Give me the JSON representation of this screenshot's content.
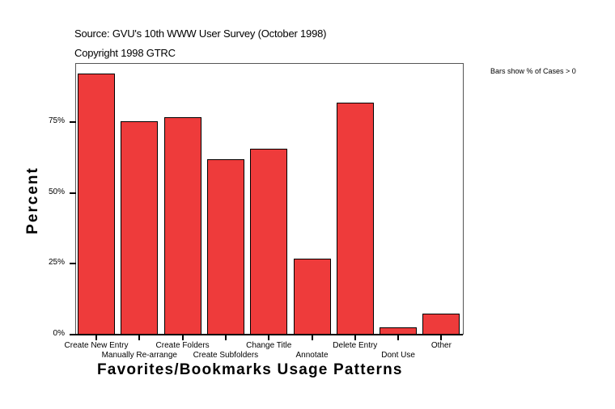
{
  "header": {
    "source": "Source: GVU's 10th WWW User Survey (October 1998)",
    "copyright": "Copyright 1998 GTRC",
    "note": "Bars show % of Cases > 0"
  },
  "chart_data": {
    "type": "bar",
    "title": "Source: GVU's 10th WWW User Survey (October 1998)",
    "subtitle": "Copyright 1998 GTRC",
    "annotation": "Bars show % of Cases > 0",
    "xlabel": "Favorites/Bookmarks Usage Patterns",
    "ylabel": "Percent",
    "ylim": [
      0,
      95
    ],
    "yticks": [
      "0%",
      "25%",
      "50%",
      "75%"
    ],
    "grid": false,
    "legend": "none",
    "bar_color": "#ee3b3b",
    "categories": [
      "Create New Entry",
      "Manually Re-arrange",
      "Create Folders",
      "Create Subfolders",
      "Change Title",
      "Annotate",
      "Delete Entry",
      "Dont Use",
      "Other"
    ],
    "values": [
      92.0,
      75.2,
      76.6,
      61.8,
      65.5,
      26.8,
      81.8,
      2.6,
      7.4
    ]
  }
}
